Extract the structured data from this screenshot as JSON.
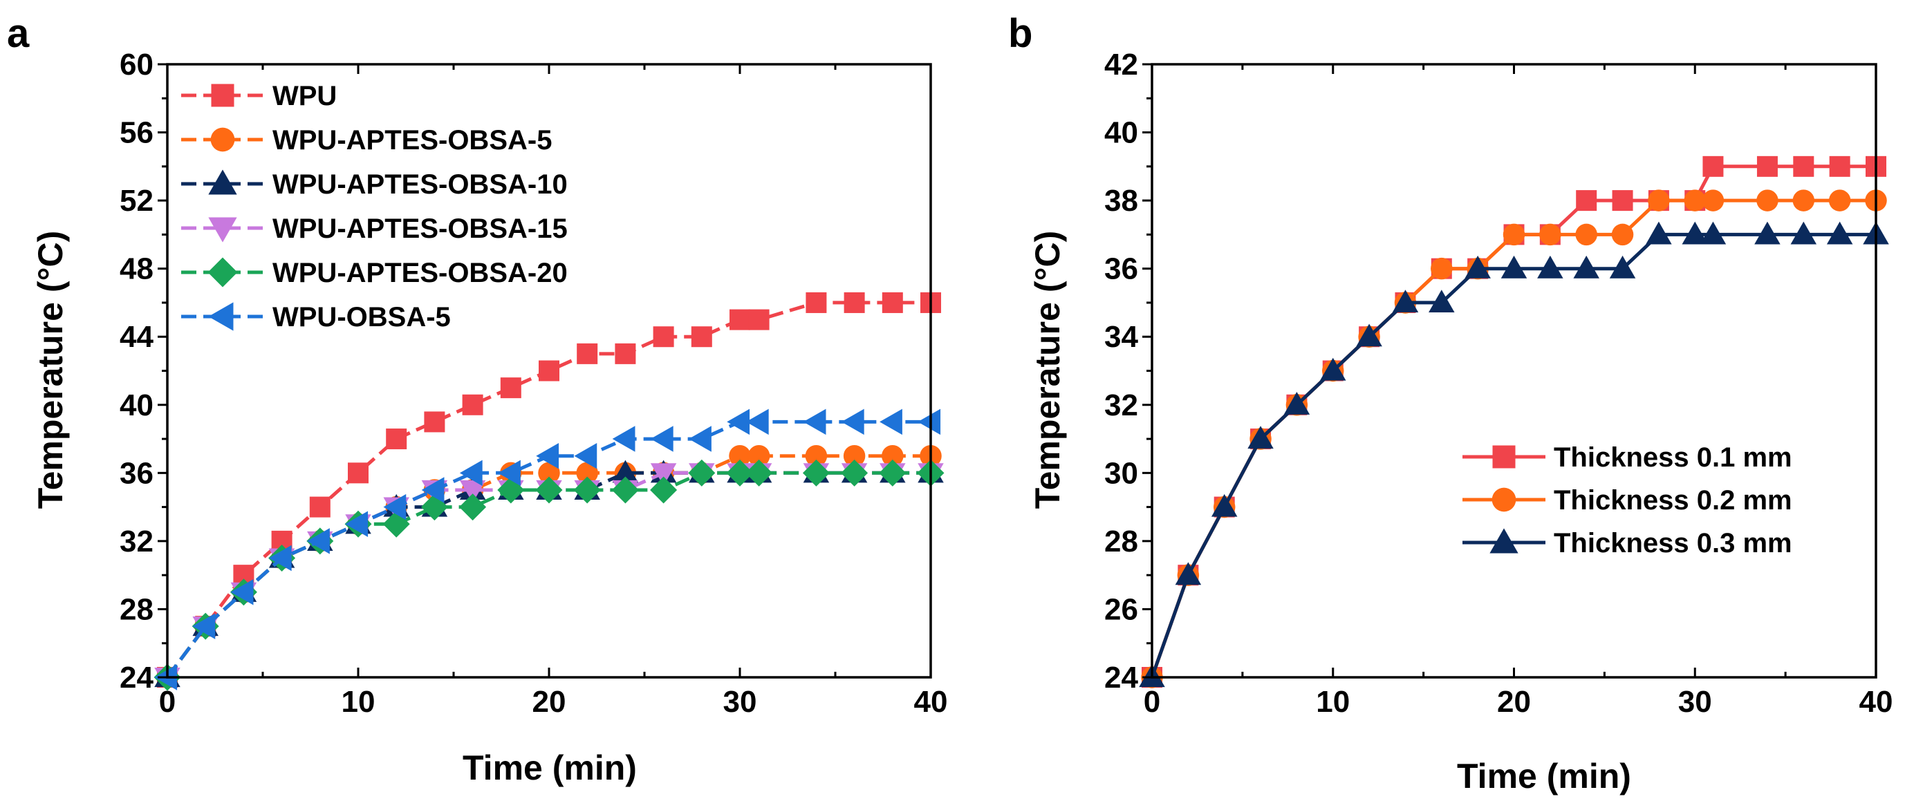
{
  "chart_data": [
    {
      "type": "line",
      "panel_label": "a",
      "title": "",
      "xlabel": "Time (min)",
      "ylabel": "Temperature (°C)",
      "xlim": [
        0,
        40
      ],
      "ylim": [
        24,
        60
      ],
      "xticks": [
        0,
        10,
        20,
        30,
        40
      ],
      "yticks": [
        24,
        28,
        32,
        36,
        40,
        44,
        48,
        52,
        56,
        60
      ],
      "grid": false,
      "legend_position": "top-left",
      "x": [
        0,
        2,
        4,
        6,
        8,
        10,
        12,
        14,
        16,
        18,
        20,
        22,
        24,
        26,
        28,
        30,
        31,
        34,
        36,
        38,
        40
      ],
      "series": [
        {
          "name": "WPU",
          "color": "#f0444b",
          "marker": "square",
          "values": [
            24,
            27,
            30,
            32,
            34,
            36,
            38,
            39,
            40,
            41,
            42,
            43,
            43,
            44,
            44,
            45,
            45,
            46,
            46,
            46,
            46
          ]
        },
        {
          "name": "WPU-APTES-OBSA-5",
          "color": "#ff6a13",
          "marker": "circle",
          "values": [
            24,
            27,
            29,
            31,
            32,
            33,
            34,
            35,
            35,
            36,
            36,
            36,
            36,
            36,
            36,
            37,
            37,
            37,
            37,
            37,
            37
          ]
        },
        {
          "name": "WPU-APTES-OBSA-10",
          "color": "#0b2a5c",
          "marker": "triangle-up",
          "values": [
            24,
            27,
            29,
            31,
            32,
            33,
            34,
            34,
            35,
            35,
            35,
            35,
            36,
            36,
            36,
            36,
            36,
            36,
            36,
            36,
            36
          ]
        },
        {
          "name": "WPU-APTES-OBSA-15",
          "color": "#c879de",
          "marker": "triangle-down",
          "values": [
            24,
            27,
            29,
            31,
            32,
            33,
            34,
            35,
            35,
            35,
            35,
            35,
            35,
            36,
            36,
            36,
            36,
            36,
            36,
            36,
            36
          ]
        },
        {
          "name": "WPU-APTES-OBSA-20",
          "color": "#1aa557",
          "marker": "diamond",
          "values": [
            24,
            27,
            29,
            31,
            32,
            33,
            33,
            34,
            34,
            35,
            35,
            35,
            35,
            35,
            36,
            36,
            36,
            36,
            36,
            36,
            36
          ]
        },
        {
          "name": "WPU-OBSA-5",
          "color": "#1e73d8",
          "marker": "triangle-left",
          "values": [
            24,
            27,
            29,
            31,
            32,
            33,
            34,
            35,
            36,
            36,
            37,
            37,
            38,
            38,
            38,
            39,
            39,
            39,
            39,
            39,
            39
          ]
        }
      ]
    },
    {
      "type": "line",
      "panel_label": "b",
      "title": "",
      "xlabel": "Time (min)",
      "ylabel": "Temperature (°C)",
      "xlim": [
        0,
        40
      ],
      "ylim": [
        24,
        42
      ],
      "xticks": [
        0,
        10,
        20,
        30,
        40
      ],
      "yticks": [
        24,
        26,
        28,
        30,
        32,
        34,
        36,
        38,
        40,
        42
      ],
      "grid": false,
      "legend_position": "bottom-right",
      "x": [
        0,
        2,
        4,
        6,
        8,
        10,
        12,
        14,
        16,
        18,
        20,
        22,
        24,
        26,
        28,
        30,
        31,
        34,
        36,
        38,
        40
      ],
      "series": [
        {
          "name": "Thickness 0.1 mm",
          "color": "#f0444b",
          "marker": "square",
          "values": [
            24,
            27,
            29,
            31,
            32,
            33,
            34,
            35,
            36,
            36,
            37,
            37,
            38,
            38,
            38,
            38,
            39,
            39,
            39,
            39,
            39
          ]
        },
        {
          "name": "Thickness 0.2 mm",
          "color": "#ff6a13",
          "marker": "circle",
          "values": [
            24,
            27,
            29,
            31,
            32,
            33,
            34,
            35,
            36,
            36,
            37,
            37,
            37,
            37,
            38,
            38,
            38,
            38,
            38,
            38,
            38
          ]
        },
        {
          "name": "Thickness 0.3 mm",
          "color": "#0b2a5c",
          "marker": "triangle-up",
          "values": [
            24,
            27,
            29,
            31,
            32,
            33,
            34,
            35,
            35,
            36,
            36,
            36,
            36,
            36,
            37,
            37,
            37,
            37,
            37,
            37,
            37
          ]
        }
      ]
    }
  ]
}
